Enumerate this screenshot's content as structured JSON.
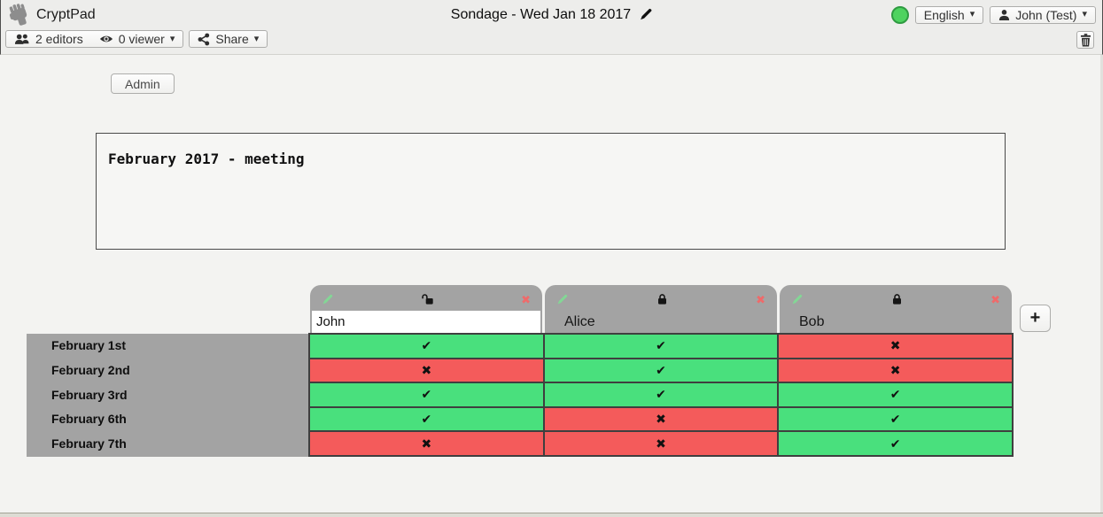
{
  "topbar": {
    "app_name": "CryptPad",
    "doc_title": "Sondage - Wed Jan 18 2017",
    "language": "English",
    "user": "John (Test)",
    "caret": "▾"
  },
  "toolbar": {
    "editors_label": "2 editors",
    "viewers_label": "0 viewer",
    "share_label": "Share"
  },
  "admin_label": "Admin",
  "description_text": "February 2017 - meeting",
  "poll": {
    "columns": [
      {
        "name": "John",
        "editable": true,
        "locked": false
      },
      {
        "name": "Alice",
        "editable": false,
        "locked": true
      },
      {
        "name": "Bob",
        "editable": false,
        "locked": true
      }
    ],
    "rows": [
      "February 1st",
      "February 2nd",
      "February 3rd",
      "February 6th",
      "February 7th"
    ],
    "votes": [
      [
        "yes",
        "yes",
        "no"
      ],
      [
        "no",
        "yes",
        "no"
      ],
      [
        "yes",
        "yes",
        "yes"
      ],
      [
        "yes",
        "no",
        "yes"
      ],
      [
        "no",
        "no",
        "yes"
      ]
    ],
    "glyphs": {
      "yes": "✔",
      "no": "✖",
      "remove": "✖",
      "add": "+"
    },
    "colors": {
      "yes": "#49e07d",
      "no": "#f45b5b"
    }
  }
}
